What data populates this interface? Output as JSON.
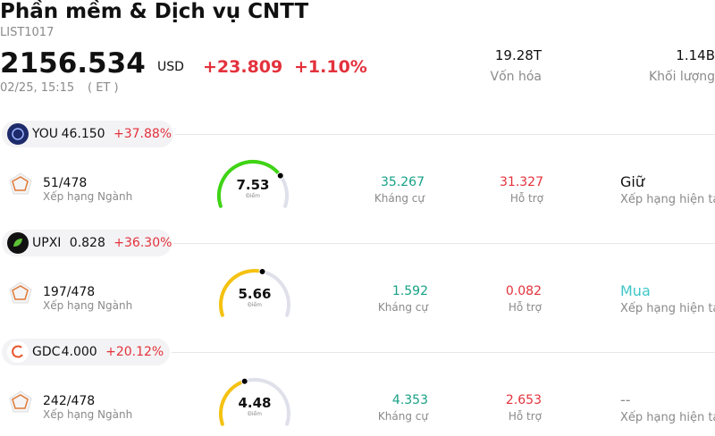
{
  "header": {
    "title": "Phần mềm & Dịch vụ CNTT",
    "code": "LIST1017",
    "price": "2156.534",
    "currency": "USD",
    "change": "+23.809",
    "change_pct": "+1.10%",
    "time": "02/25, 15:15",
    "timezone": "( ET )",
    "stats": [
      {
        "value": "19.28T",
        "label": "Vốn hóa"
      },
      {
        "value": "1.14B",
        "label": "Khối lượng"
      }
    ]
  },
  "stocks": [
    {
      "ticker": "YOU",
      "price": "46.150",
      "change": "+37.88%",
      "logo_color": "#1d2b6b",
      "rank": "51/478",
      "rank_label": "Xếp hạng Ngành",
      "score": "7.53",
      "score_label": "Điểm",
      "score_color": "#3fd414",
      "resistance": "35.267",
      "resistance_label": "Kháng cự",
      "support": "31.327",
      "support_label": "Hỗ trợ",
      "rating": "Giữ",
      "rating_color": "#111111",
      "rating_label": "Xếp hạng hiện tại"
    },
    {
      "ticker": "UPXI",
      "price": "0.828",
      "change": "+36.30%",
      "logo_color": "#111111",
      "rank": "197/478",
      "rank_label": "Xếp hạng Ngành",
      "score": "5.66",
      "score_label": "Điểm",
      "score_color": "#f5c211",
      "resistance": "1.592",
      "resistance_label": "Kháng cự",
      "support": "0.082",
      "support_label": "Hỗ trợ",
      "rating": "Mua",
      "rating_color": "#3fc7c9",
      "rating_label": "Xếp hạng hiện tại"
    },
    {
      "ticker": "GDC",
      "price": "4.000",
      "change": "+20.12%",
      "logo_color": "#ffffff",
      "rank": "242/478",
      "rank_label": "Xếp hạng Ngành",
      "score": "4.48",
      "score_label": "Điểm",
      "score_color": "#f5c211",
      "resistance": "4.353",
      "resistance_label": "Kháng cự",
      "support": "2.653",
      "support_label": "Hỗ trợ",
      "rating": "--",
      "rating_color": "#8a8a8a",
      "rating_label": "Xếp hạng hiện tại"
    }
  ]
}
